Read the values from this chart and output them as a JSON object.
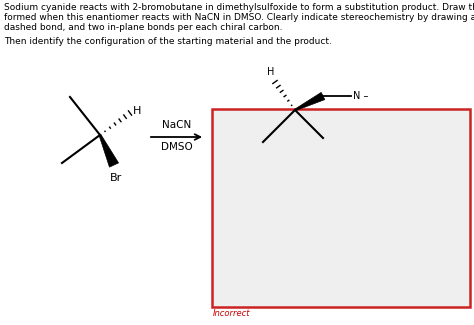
{
  "title_line1": "Sodium cyanide reacts with 2-bromobutane in dimethylsulfoxide to form a substitution product. Draw the substitution product",
  "title_line2": "formed when this enantiomer reacts with NaCN in DMSO. Clearly indicate stereochemistry by drawing a wedged bond, a",
  "title_line3": "dashed bond, and two in-plane bonds per each chiral carbon.",
  "title_line4": "Then identify the configuration of the starting material and the product.",
  "incorrect_label": "Incorrect",
  "incorrect_color": "#cc0000",
  "reagent_text1": "NaCN",
  "reagent_text2": "DMSO",
  "box_color": "#cc2222",
  "box_bg": "#efefef",
  "background_color": "#ffffff"
}
